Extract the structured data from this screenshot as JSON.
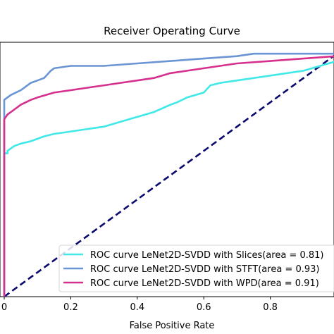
{
  "chart_data": {
    "type": "line",
    "title": "Receiver Operating Curve",
    "xlabel": "False Positive Rate",
    "ylabel": "",
    "xlim": [
      0.0,
      1.0
    ],
    "ylim": [
      0.0,
      1.05
    ],
    "xticks": [
      "0",
      "0.2",
      "0.4",
      "0.6",
      "0.8"
    ],
    "legend_position": "lower-right",
    "series": [
      {
        "name": "ROC curve LeNet2D-SVDD with Slices(area = 0.81)",
        "color": "#40e8e8",
        "x": [
          0.0,
          0.0,
          0.01,
          0.01,
          0.02,
          0.03,
          0.05,
          0.08,
          0.12,
          0.15,
          0.2,
          0.25,
          0.3,
          0.35,
          0.4,
          0.45,
          0.5,
          0.52,
          0.55,
          0.6,
          0.62,
          0.65,
          0.7,
          0.8,
          0.9,
          0.95,
          1.0
        ],
        "y": [
          0.0,
          0.59,
          0.59,
          0.6,
          0.61,
          0.62,
          0.63,
          0.64,
          0.66,
          0.67,
          0.68,
          0.69,
          0.7,
          0.72,
          0.74,
          0.76,
          0.79,
          0.8,
          0.82,
          0.84,
          0.87,
          0.88,
          0.89,
          0.91,
          0.93,
          0.95,
          0.97
        ]
      },
      {
        "name": "ROC curve LeNet2D-SVDD with STFT(area = 0.93)",
        "color": "#6a94d4",
        "x": [
          0.0,
          0.0,
          0.02,
          0.05,
          0.08,
          0.1,
          0.12,
          0.14,
          0.15,
          0.2,
          0.3,
          0.4,
          0.5,
          0.6,
          0.7,
          0.75,
          0.8,
          0.9,
          1.0
        ],
        "y": [
          0.0,
          0.81,
          0.83,
          0.85,
          0.88,
          0.89,
          0.9,
          0.93,
          0.94,
          0.95,
          0.95,
          0.96,
          0.97,
          0.98,
          0.99,
          1.0,
          1.0,
          1.0,
          1.0
        ]
      },
      {
        "name": "ROC curve LeNet2D-SVDD with WPD(area = 0.91)",
        "color": "#d62f8e",
        "x": [
          0.0,
          0.0,
          0.01,
          0.03,
          0.05,
          0.08,
          0.1,
          0.15,
          0.2,
          0.25,
          0.3,
          0.35,
          0.4,
          0.45,
          0.5,
          0.55,
          0.6,
          0.7,
          0.8,
          0.9,
          1.0
        ],
        "y": [
          0.0,
          0.73,
          0.75,
          0.77,
          0.79,
          0.81,
          0.82,
          0.84,
          0.85,
          0.86,
          0.87,
          0.88,
          0.89,
          0.9,
          0.92,
          0.93,
          0.94,
          0.96,
          0.97,
          0.98,
          0.99
        ]
      }
    ],
    "reference_line": {
      "color": "#0a0a6e",
      "style": "dashed",
      "x": [
        0.0,
        1.0
      ],
      "y": [
        0.0,
        1.0
      ]
    }
  }
}
